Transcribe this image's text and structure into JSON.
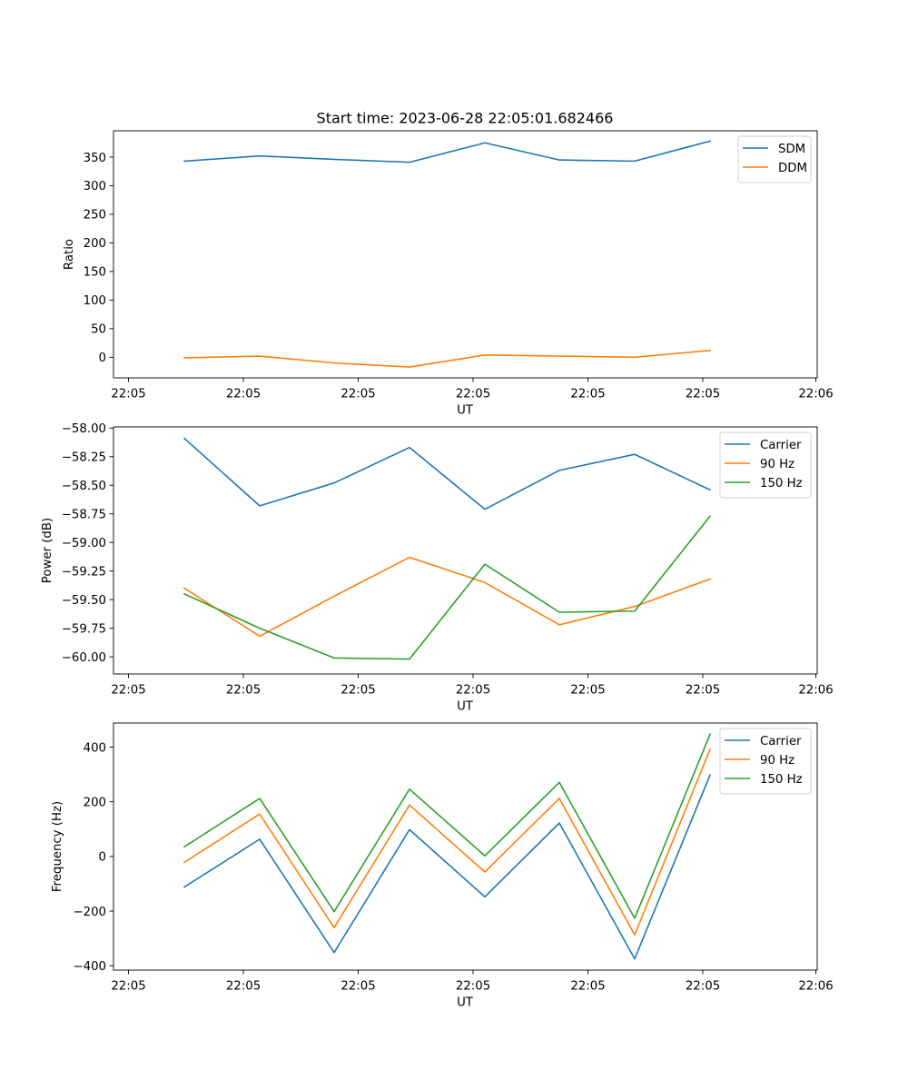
{
  "figure": {
    "title": "Start time: 2023-06-28 22:05:01.682466"
  },
  "chart_data": [
    {
      "type": "line",
      "title": "Start time: 2023-06-28 22:05:01.682466",
      "xlabel": "UT",
      "ylabel": "Ratio",
      "x_tick_labels": [
        "22:05",
        "22:05",
        "22:05",
        "22:05",
        "22:05",
        "22:05",
        "22:06"
      ],
      "y_ticks": [
        0,
        50,
        100,
        150,
        200,
        250,
        300,
        350
      ],
      "y_tick_labels": [
        "0",
        "50",
        "100",
        "150",
        "200",
        "250",
        "300",
        "350"
      ],
      "ylim": [
        -36,
        396
      ],
      "x_index": [
        0,
        1,
        2,
        3,
        4,
        5,
        6,
        7
      ],
      "series": [
        {
          "name": "SDM",
          "color": "#1f77b4",
          "values": [
            343,
            352,
            346,
            341,
            375,
            345,
            343,
            378
          ]
        },
        {
          "name": "DDM",
          "color": "#ff7f0e",
          "values": [
            -1,
            2,
            -10,
            -17,
            4,
            2,
            0,
            12
          ]
        }
      ],
      "legend_position": "upper right",
      "grid": false
    },
    {
      "type": "line",
      "xlabel": "UT",
      "ylabel": "Power (dB)",
      "x_tick_labels": [
        "22:05",
        "22:05",
        "22:05",
        "22:05",
        "22:05",
        "22:05",
        "22:06"
      ],
      "y_ticks": [
        -60.0,
        -59.75,
        -59.5,
        -59.25,
        -59.0,
        -58.75,
        -58.5,
        -58.25,
        -58.0
      ],
      "y_tick_labels": [
        "−60.00",
        "−59.75",
        "−59.50",
        "−59.25",
        "−59.00",
        "−58.75",
        "−58.50",
        "−58.25",
        "−58.00"
      ],
      "ylim": [
        -60.15,
        -57.99
      ],
      "x_index": [
        0,
        1,
        2,
        3,
        4,
        5,
        6,
        7
      ],
      "series": [
        {
          "name": "Carrier",
          "color": "#1f77b4",
          "values": [
            -58.09,
            -58.68,
            -58.48,
            -58.17,
            -58.71,
            -58.37,
            -58.23,
            -58.54
          ]
        },
        {
          "name": "90 Hz",
          "color": "#ff7f0e",
          "values": [
            -59.4,
            -59.82,
            -59.47,
            -59.13,
            -59.35,
            -59.72,
            -59.56,
            -59.32
          ]
        },
        {
          "name": "150 Hz",
          "color": "#2ca02c",
          "values": [
            -59.45,
            -59.75,
            -60.01,
            -60.02,
            -59.19,
            -59.61,
            -59.6,
            -58.77
          ]
        }
      ],
      "legend_position": "upper right",
      "grid": false
    },
    {
      "type": "line",
      "xlabel": "UT",
      "ylabel": "Frequency (Hz)",
      "x_tick_labels": [
        "22:05",
        "22:05",
        "22:05",
        "22:05",
        "22:05",
        "22:05",
        "22:06"
      ],
      "y_ticks": [
        -400,
        -200,
        0,
        200,
        400
      ],
      "y_tick_labels": [
        "−400",
        "−200",
        "0",
        "200",
        "400"
      ],
      "ylim": [
        -416,
        488
      ],
      "x_index": [
        0,
        1,
        2,
        3,
        4,
        5,
        6,
        7
      ],
      "series": [
        {
          "name": "Carrier",
          "color": "#1f77b4",
          "values": [
            -112,
            63,
            -352,
            98,
            -148,
            122,
            -375,
            298
          ]
        },
        {
          "name": "90 Hz",
          "color": "#ff7f0e",
          "values": [
            -22,
            155,
            -261,
            188,
            -57,
            212,
            -287,
            392
          ]
        },
        {
          "name": "150 Hz",
          "color": "#2ca02c",
          "values": [
            35,
            212,
            -202,
            246,
            2,
            271,
            -226,
            447
          ]
        }
      ],
      "legend_position": "upper right",
      "grid": false
    }
  ]
}
